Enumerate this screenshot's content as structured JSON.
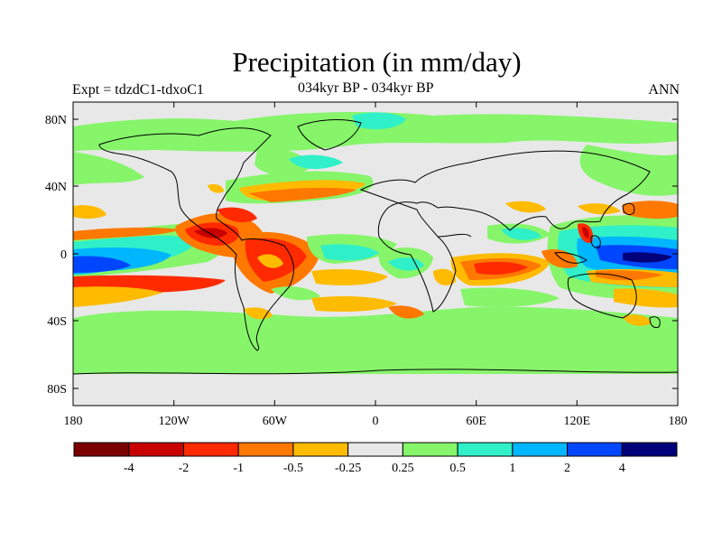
{
  "header": {
    "title": "Precipitation (in mm/day)",
    "experiment_label": "Expt = tdzdC1-tdxoC1",
    "period_label": "034kyr BP - 034kyr BP",
    "season_label": "ANN"
  },
  "axes": {
    "lat_ticks": [
      "80N",
      "40N",
      "0",
      "40S",
      "80S"
    ],
    "lon_ticks": [
      "180",
      "120W",
      "60W",
      "0",
      "60E",
      "120E",
      "180"
    ]
  },
  "colorbar": {
    "colors": [
      "#7a0000",
      "#c80000",
      "#ff2a00",
      "#ff7800",
      "#ffbb00",
      "#e8e8e8",
      "#86f56a",
      "#2ff0c8",
      "#00b6ff",
      "#0046ff",
      "#00007a"
    ],
    "labels": [
      "-4",
      "-2",
      "-1",
      "-0.5",
      "-0.25",
      "0.25",
      "0.5",
      "1",
      "2",
      "4"
    ]
  }
}
